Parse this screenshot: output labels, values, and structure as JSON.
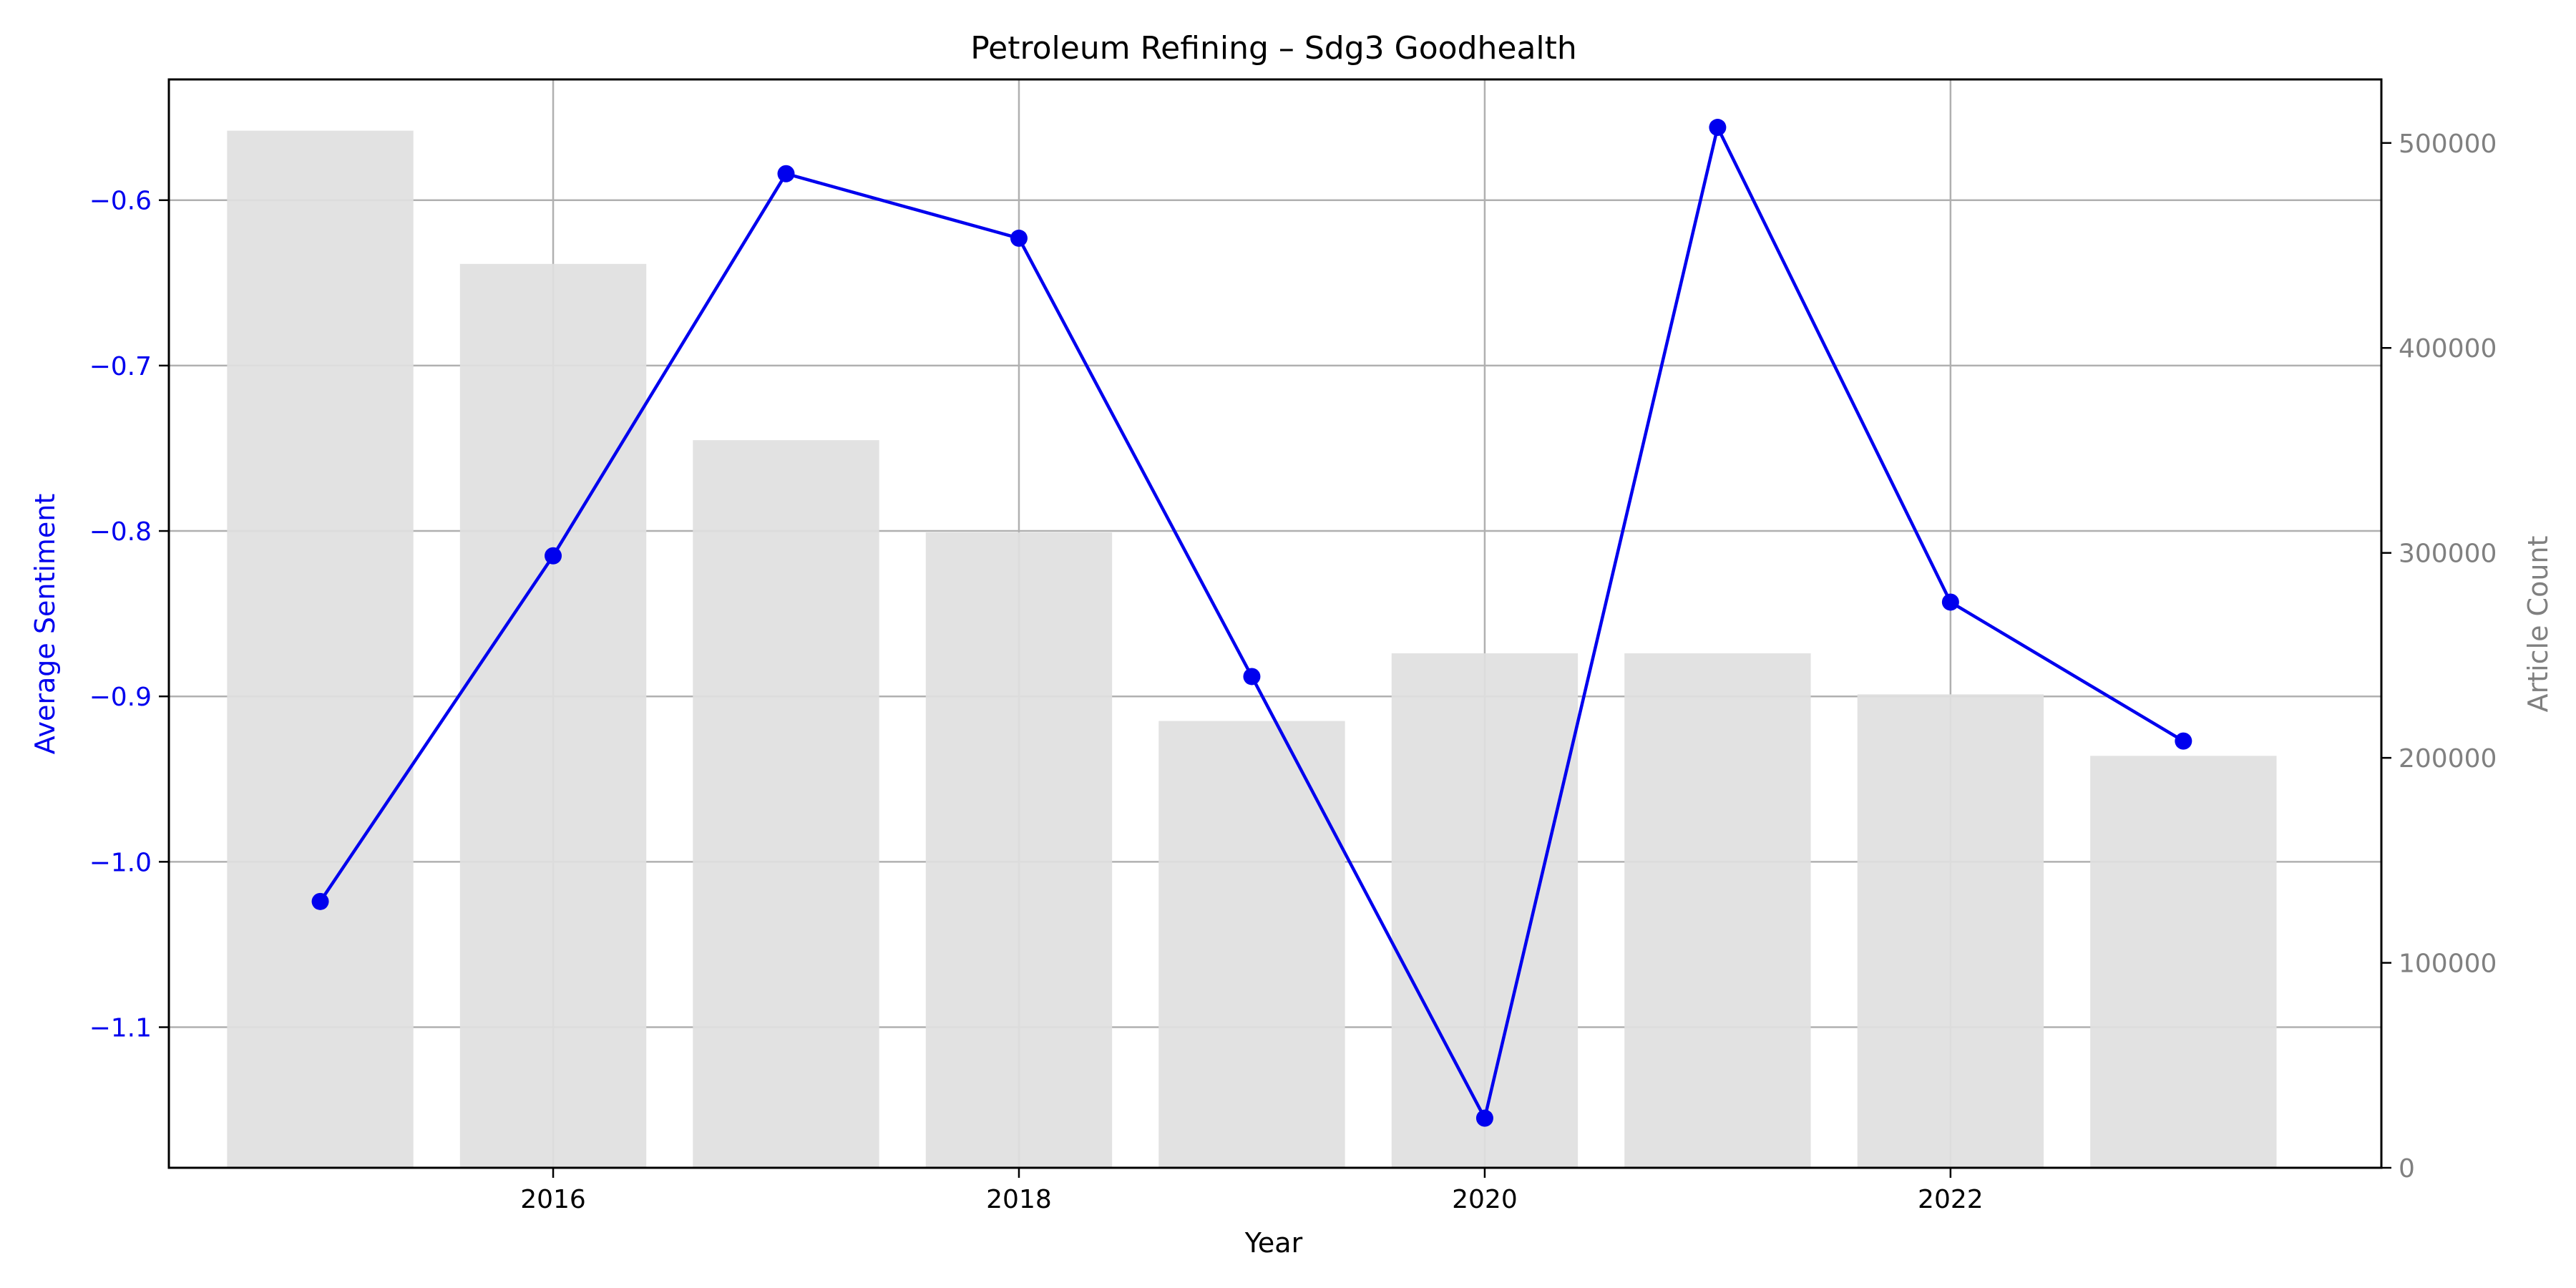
{
  "chart_data": {
    "type": "bar+line",
    "title": "Petroleum Refining – Sdg3 Goodhealth",
    "xlabel": "Year",
    "ylabel_left": "Average Sentiment",
    "ylabel_right": "Article Count",
    "x": [
      2015,
      2016,
      2017,
      2018,
      2019,
      2020,
      2021,
      2022,
      2023
    ],
    "x_ticks": [
      2016,
      2018,
      2020,
      2022
    ],
    "x_tick_labels": [
      "2016",
      "2018",
      "2020",
      "2022"
    ],
    "xlim": [
      2014.35,
      2023.85
    ],
    "bars": {
      "axis": "right",
      "values": [
        506000,
        441000,
        355000,
        310000,
        218000,
        251000,
        251000,
        231000,
        201000
      ],
      "color": "#e0e0e0"
    },
    "line": {
      "axis": "left",
      "values": [
        -1.024,
        -0.815,
        -0.584,
        -0.623,
        -0.888,
        -1.155,
        -0.556,
        -0.843,
        -0.927
      ],
      "color": "#0000ee"
    },
    "y_left": {
      "lim": [
        -1.185,
        -0.527
      ],
      "ticks": [
        -0.6,
        -0.7,
        -0.8,
        -0.9,
        -1.0,
        -1.1
      ],
      "tick_labels": [
        "−0.6",
        "−0.7",
        "−0.8",
        "−0.9",
        "−1.0",
        "−1.1"
      ],
      "color": "#0000ee"
    },
    "y_right": {
      "lim": [
        0,
        531000
      ],
      "ticks": [
        0,
        100000,
        200000,
        300000,
        400000,
        500000
      ],
      "tick_labels": [
        "0",
        "100000",
        "200000",
        "300000",
        "400000",
        "500000"
      ],
      "color": "#808080"
    },
    "grid": true,
    "grid_color": "#b0b0b0"
  }
}
